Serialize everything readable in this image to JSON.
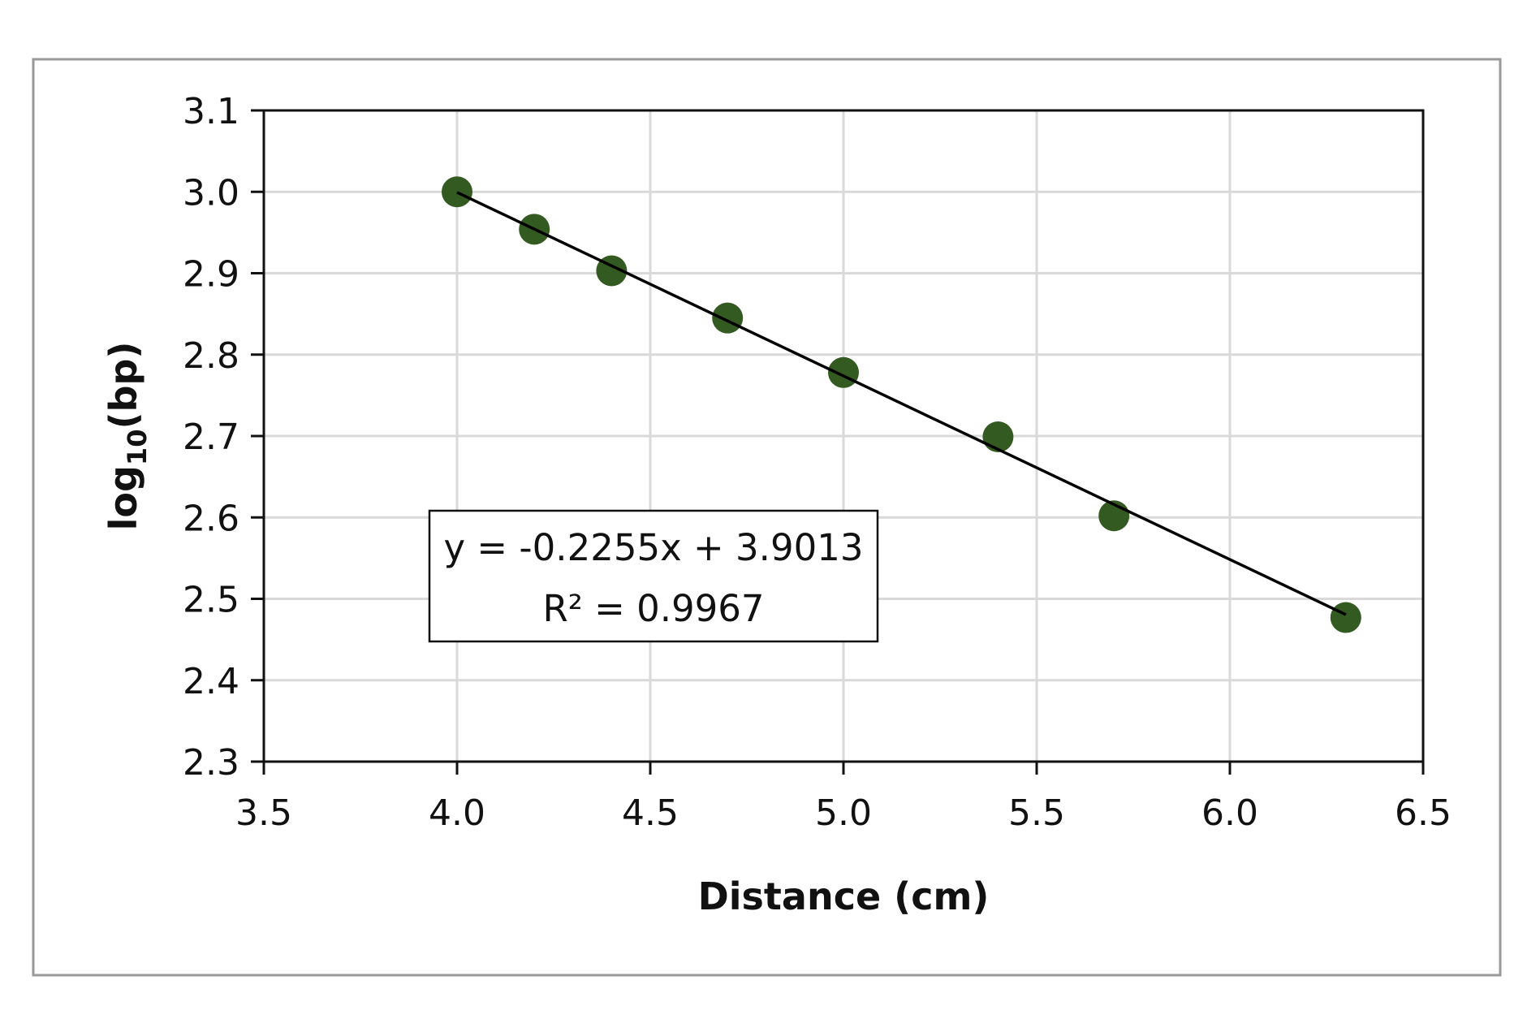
{
  "chart_data": {
    "type": "scatter",
    "title": "",
    "xlabel": "Distance (cm)",
    "ylabel_main": "log",
    "ylabel_sub": "10",
    "ylabel_tail": "(bp)",
    "xlim": [
      3.5,
      6.5
    ],
    "ylim": [
      2.3,
      3.1
    ],
    "xticks": [
      "3.5",
      "4.0",
      "4.5",
      "5.0",
      "5.5",
      "6.0",
      "6.5"
    ],
    "yticks": [
      "2.3",
      "2.4",
      "2.5",
      "2.6",
      "2.7",
      "2.8",
      "2.9",
      "3.0",
      "3.1"
    ],
    "grid": true,
    "series": [
      {
        "name": "log10(bp)",
        "color": "#335a20",
        "x": [
          4.0,
          4.2,
          4.4,
          4.7,
          5.0,
          5.4,
          5.7,
          6.3
        ],
        "y": [
          3.0,
          2.954,
          2.903,
          2.845,
          2.778,
          2.699,
          2.602,
          2.477
        ]
      }
    ],
    "trendline": {
      "slope": -0.2255,
      "intercept": 3.9013,
      "x_range": [
        4.0,
        6.3
      ],
      "color": "#000000"
    },
    "annotation": {
      "equation": "y = -0.2255x + 3.9013",
      "r2": "R² = 0.9967"
    }
  }
}
